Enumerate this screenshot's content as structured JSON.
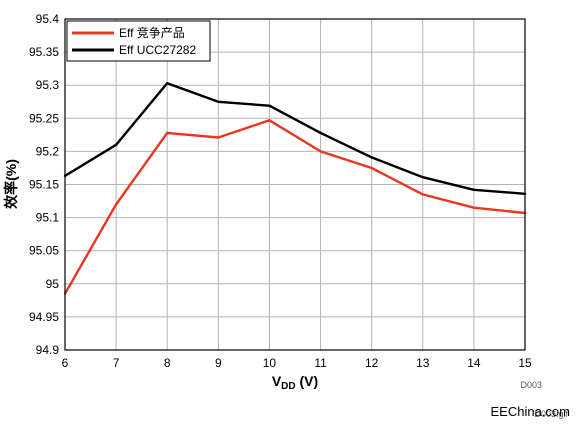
{
  "chart_data": {
    "type": "line",
    "x": [
      6,
      7,
      8,
      9,
      10,
      11,
      12,
      13,
      14,
      15
    ],
    "series": [
      {
        "name": "Eff 竞争产品",
        "color": "#e8361f",
        "values": [
          94.985,
          95.12,
          95.228,
          95.221,
          95.247,
          95.2,
          95.175,
          95.135,
          95.115,
          95.107
        ]
      },
      {
        "name": "Eff UCC27282",
        "color": "#000000",
        "values": [
          95.163,
          95.21,
          95.303,
          95.275,
          95.269,
          95.228,
          95.191,
          95.161,
          95.142,
          95.136
        ]
      }
    ],
    "xlabel_main": "V",
    "xlabel_sub": "DD",
    "xlabel_unit": " (V)",
    "ylabel": "效率(%)",
    "xlim": [
      6,
      15
    ],
    "ylim": [
      94.9,
      95.4
    ],
    "x_ticks": [
      "6",
      "7",
      "8",
      "9",
      "10",
      "11",
      "12",
      "13",
      "14",
      "15"
    ],
    "y_ticks": [
      "94.9",
      "94.95",
      "95",
      "95.05",
      "95.1",
      "95.15",
      "95.2",
      "95.25",
      "95.3",
      "95.35",
      "95.4"
    ],
    "grid": true,
    "legend_position": "top-left"
  },
  "figure_code": "D003",
  "watermark": "EEChina.com",
  "watermark_under": "D003.gif"
}
